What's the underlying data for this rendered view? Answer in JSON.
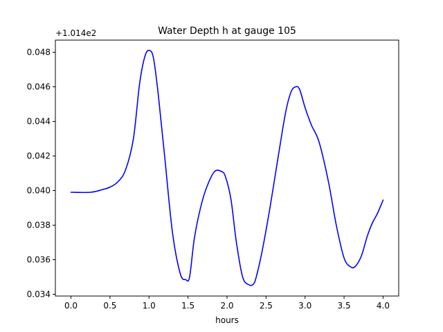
{
  "chart_data": {
    "type": "line",
    "title": "Water Depth h at gauge 105",
    "xlabel": "hours",
    "ylabel": "",
    "offset_text": "+1.014e2",
    "xlim": [
      -0.2,
      4.2
    ],
    "ylim": [
      0.0339,
      0.0487
    ],
    "xticks": [
      0.0,
      0.5,
      1.0,
      1.5,
      2.0,
      2.5,
      3.0,
      3.5,
      4.0
    ],
    "xtick_labels": [
      "0.0",
      "0.5",
      "1.0",
      "1.5",
      "2.0",
      "2.5",
      "3.0",
      "3.5",
      "4.0"
    ],
    "yticks": [
      0.034,
      0.036,
      0.038,
      0.04,
      0.042,
      0.044,
      0.046,
      0.048
    ],
    "ytick_labels": [
      "0.034",
      "0.036",
      "0.038",
      "0.040",
      "0.042",
      "0.044",
      "0.046",
      "0.048"
    ],
    "grid": false,
    "series": [
      {
        "color": "#0000ff",
        "x": [
          0.0,
          0.25,
          0.4,
          0.5,
          0.6,
          0.7,
          0.8,
          0.88,
          0.95,
          1.01,
          1.06,
          1.12,
          1.2,
          1.3,
          1.4,
          1.47,
          1.52,
          1.58,
          1.66,
          1.74,
          1.84,
          1.93,
          1.98,
          2.05,
          2.12,
          2.2,
          2.28,
          2.34,
          2.38,
          2.45,
          2.55,
          2.65,
          2.75,
          2.82,
          2.88,
          2.93,
          3.0,
          3.08,
          3.18,
          3.3,
          3.4,
          3.5,
          3.58,
          3.64,
          3.72,
          3.8,
          3.86,
          3.93,
          4.0
        ],
        "y": [
          0.0399,
          0.0399,
          0.04005,
          0.0402,
          0.0405,
          0.0412,
          0.043,
          0.0462,
          0.0478,
          0.0481,
          0.0476,
          0.0455,
          0.042,
          0.0376,
          0.0352,
          0.03485,
          0.035,
          0.0372,
          0.039,
          0.0402,
          0.0411,
          0.0411,
          0.0408,
          0.0395,
          0.037,
          0.035,
          0.03455,
          0.0346,
          0.0351,
          0.0365,
          0.039,
          0.0418,
          0.0445,
          0.0457,
          0.046,
          0.04585,
          0.0448,
          0.0438,
          0.0428,
          0.0405,
          0.038,
          0.0361,
          0.0356,
          0.0356,
          0.0362,
          0.0374,
          0.0381,
          0.0387,
          0.03945
        ]
      }
    ]
  }
}
